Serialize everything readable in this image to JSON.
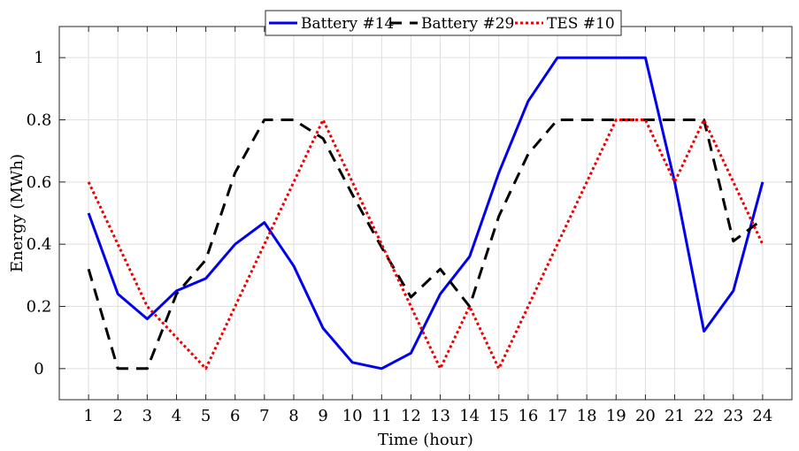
{
  "chart_data": {
    "type": "line",
    "title": "",
    "xlabel": "Time (hour)",
    "ylabel": "Energy (MWh)",
    "xlim": [
      0,
      25
    ],
    "ylim": [
      -0.1,
      1.1
    ],
    "x": [
      1,
      2,
      3,
      4,
      5,
      6,
      7,
      8,
      9,
      10,
      11,
      12,
      13,
      14,
      15,
      16,
      17,
      18,
      19,
      20,
      21,
      22,
      23,
      24
    ],
    "x_ticks": [
      "1",
      "2",
      "3",
      "4",
      "5",
      "6",
      "7",
      "8",
      "9",
      "10",
      "11",
      "12",
      "13",
      "14",
      "15",
      "16",
      "17",
      "18",
      "19",
      "20",
      "21",
      "22",
      "23",
      "24"
    ],
    "y_ticks": [
      0,
      0.2,
      0.4,
      0.6,
      0.8,
      1
    ],
    "y_tick_labels": [
      "0",
      "0.2",
      "0.4",
      "0.6",
      "0.8",
      "1"
    ],
    "grid": true,
    "legend_position": "top-center",
    "series": [
      {
        "name": "Battery #14",
        "color": "#0000ee",
        "style": "solid",
        "values": [
          0.5,
          0.24,
          0.16,
          0.25,
          0.29,
          0.4,
          0.47,
          0.33,
          0.13,
          0.02,
          0.0,
          0.05,
          0.24,
          0.36,
          0.63,
          0.86,
          1.0,
          1.0,
          1.0,
          1.0,
          0.6,
          0.12,
          0.25,
          0.6
        ]
      },
      {
        "name": "Battery #29",
        "color": "#000000",
        "style": "dashed",
        "values": [
          0.32,
          0.0,
          0.0,
          0.24,
          0.35,
          0.63,
          0.8,
          0.8,
          0.74,
          0.56,
          0.39,
          0.23,
          0.32,
          0.2,
          0.49,
          0.69,
          0.8,
          0.8,
          0.8,
          0.8,
          0.8,
          0.8,
          0.41,
          0.48
        ]
      },
      {
        "name": "TES #10",
        "color": "#ee0000",
        "style": "dotted",
        "values": [
          0.6,
          0.4,
          0.2,
          0.1,
          0.0,
          0.2,
          0.4,
          0.6,
          0.8,
          0.6,
          0.4,
          0.2,
          0.0,
          0.2,
          0.0,
          0.2,
          0.4,
          0.6,
          0.8,
          0.8,
          0.6,
          0.8,
          0.6,
          0.4
        ]
      }
    ]
  }
}
